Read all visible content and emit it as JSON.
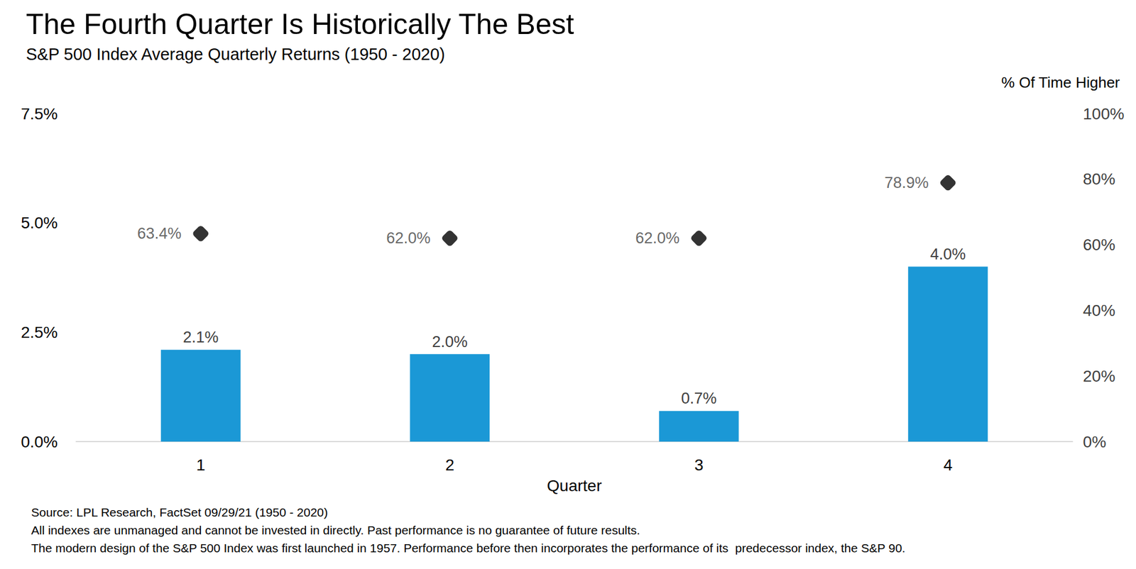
{
  "chart_data": {
    "type": "bar",
    "title": "The Fourth Quarter Is Historically The Best",
    "subtitle": "S&P 500 Index Average Quarterly Returns (1950 - 2020)",
    "x_label": "Quarter",
    "y2_label": "% Of Time Higher",
    "categories": [
      "1",
      "2",
      "3",
      "4"
    ],
    "series": [
      {
        "type": "bar",
        "color": "#1b98d6",
        "values": [
          2.1,
          2.0,
          0.7,
          4.0
        ],
        "value_labels": [
          "2.1%",
          "2.0%",
          "0.7%",
          "4.0%"
        ]
      },
      {
        "type": "scatter",
        "axis": "y2",
        "marker": "diamond",
        "color": "#000000",
        "values": [
          63.4,
          62.0,
          62.0,
          78.9
        ],
        "value_labels": [
          "63.4%",
          "62.0%",
          "62.0%",
          "78.9%"
        ]
      }
    ],
    "ylim": [
      0,
      7.5
    ],
    "yticks": [
      {
        "value": 0,
        "label": "0.0%"
      },
      {
        "value": 2.5,
        "label": "2.5%"
      },
      {
        "value": 5,
        "label": "5.0%"
      },
      {
        "value": 7.5,
        "label": "7.5%"
      }
    ],
    "y2lim": [
      0,
      100
    ],
    "y2ticks": [
      {
        "value": 0,
        "label": "0%"
      },
      {
        "value": 20,
        "label": "20%"
      },
      {
        "value": 40,
        "label": "40%"
      },
      {
        "value": 60,
        "label": "60%"
      },
      {
        "value": 80,
        "label": "80%"
      },
      {
        "value": 100,
        "label": "100%"
      }
    ],
    "grid": false,
    "data_labels": true,
    "notes": [
      "Source: LPL Research, FactSet 09/29/21 (1950 - 2020)",
      "All indexes are unmanaged and cannot be invested in directly. Past performance is no guarantee of future results.",
      "The modern design of the S&P 500 Index was first launched in 1957. Performance before then incorporates the performance of its  predecessor index, the S&P 90."
    ]
  }
}
